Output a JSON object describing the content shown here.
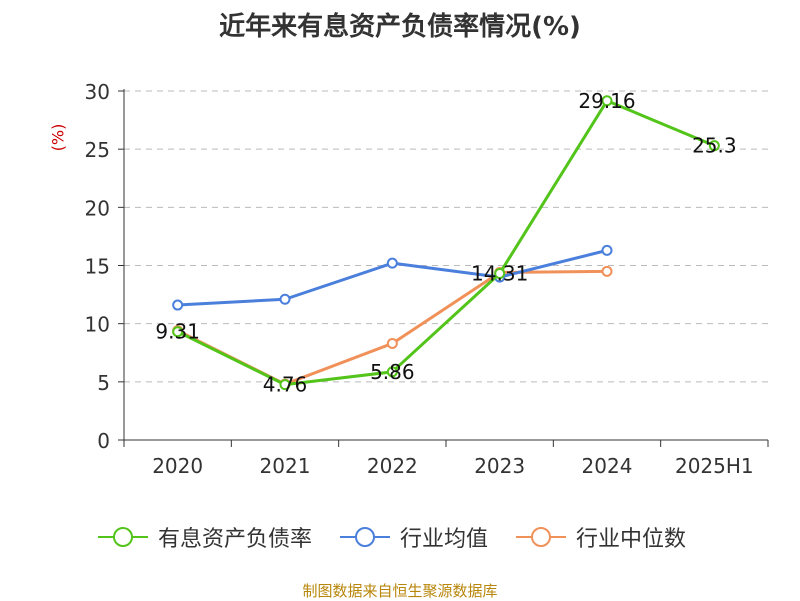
{
  "chart_data": {
    "type": "line",
    "title": "近年来有息资产负债率情况(%)",
    "ylabel": "(%)",
    "categories": [
      "2020",
      "2021",
      "2022",
      "2023",
      "2024",
      "2025H1"
    ],
    "ylim": [
      0,
      30
    ],
    "yticks": [
      "0",
      "5",
      "10",
      "15",
      "20",
      "25",
      "30"
    ],
    "grid": true,
    "legend_position": "bottom",
    "series": [
      {
        "name": "有息资产负债率",
        "color": "#52c41a",
        "values": [
          9.31,
          4.76,
          5.86,
          14.31,
          29.16,
          25.3
        ],
        "labels": [
          "9.31",
          "4.76",
          "5.86",
          "14.31",
          "29.16",
          "25.3"
        ]
      },
      {
        "name": "行业均值",
        "color": "#4a7fdc",
        "values": [
          11.6,
          12.1,
          15.2,
          14.0,
          16.3,
          null
        ]
      },
      {
        "name": "行业中位数",
        "color": "#f0915a",
        "values": [
          9.4,
          4.8,
          8.3,
          14.4,
          14.5,
          null
        ]
      }
    ]
  },
  "source": "制图数据来自恒生聚源数据库"
}
